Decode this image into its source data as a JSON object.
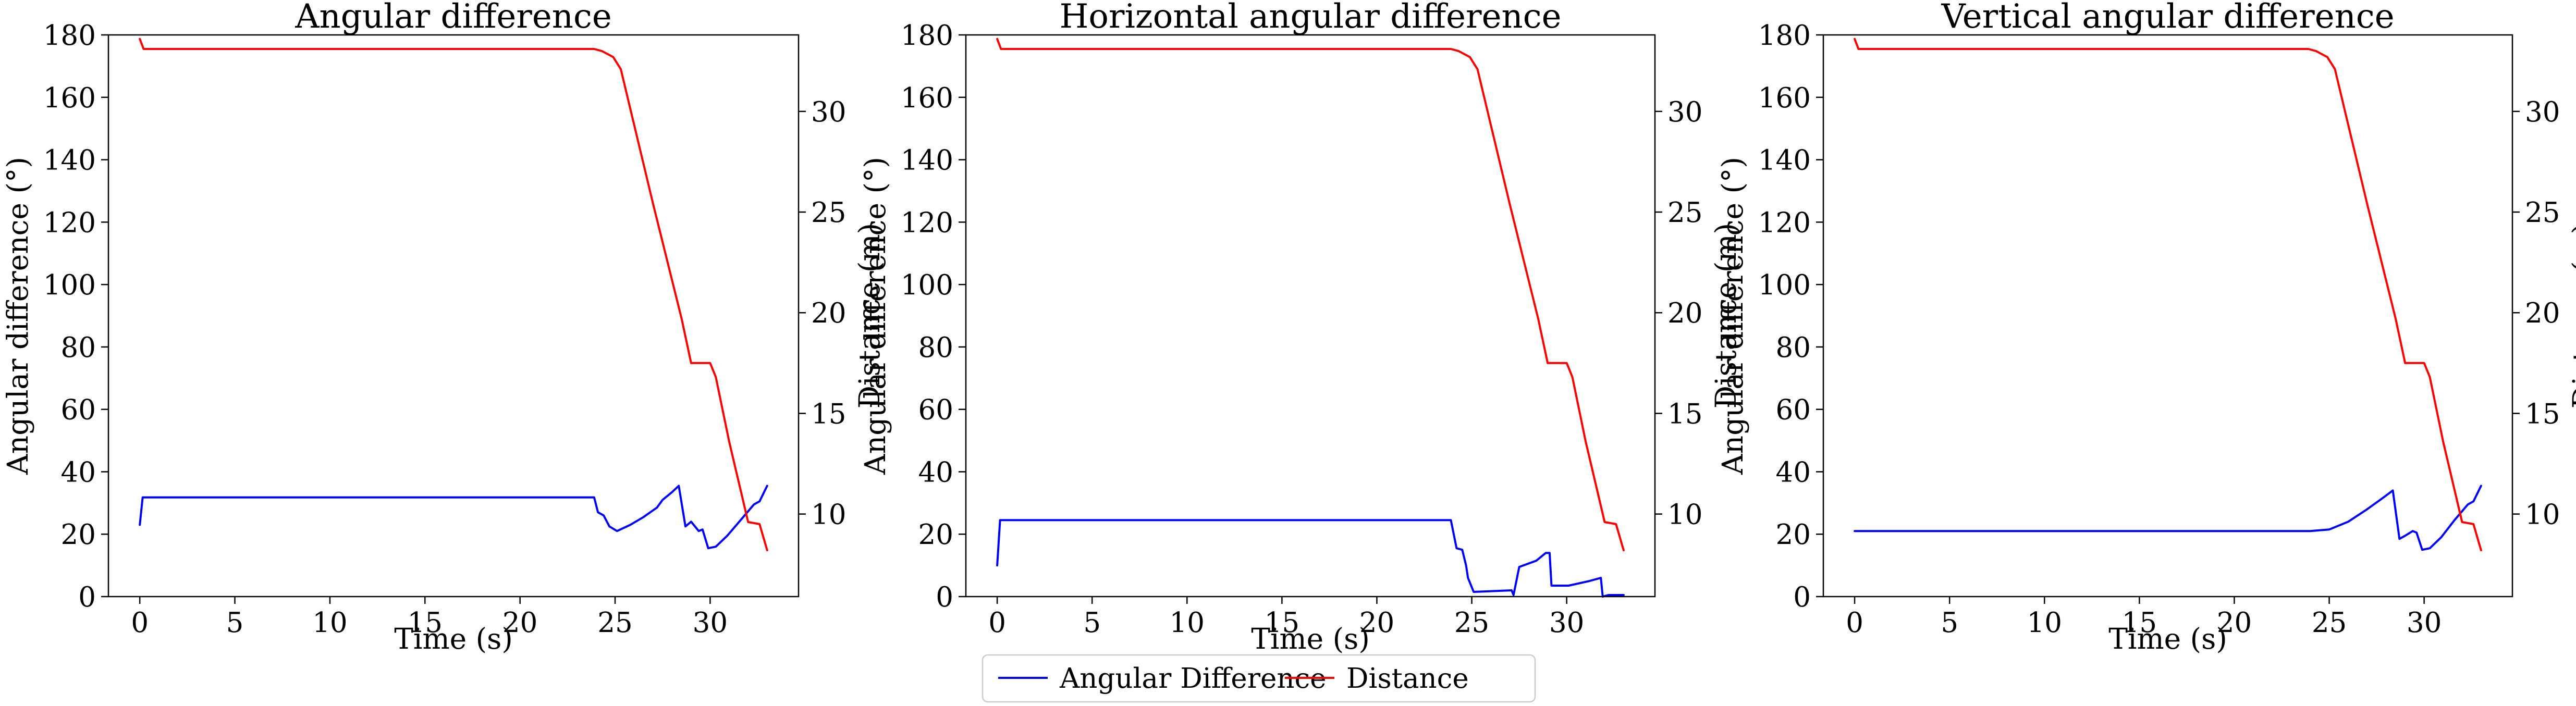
{
  "legend": {
    "position": "bottom-center",
    "entries": [
      {
        "label": "Angular Difference",
        "color": "#0000ff"
      },
      {
        "label": "Distance",
        "color": "#ff0000"
      }
    ]
  },
  "chart_data": [
    {
      "type": "line",
      "title": "Angular difference",
      "xlabel": "Time (s)",
      "ylabel": "Angular difference (°)",
      "y2label": "Distance (m)",
      "xlim": [
        -1.65,
        34.65
      ],
      "ylim": [
        0,
        180
      ],
      "y2lim": [
        5.9,
        33.8
      ],
      "xticks": [
        0,
        5,
        10,
        15,
        20,
        25,
        30
      ],
      "yticks": [
        0,
        20,
        40,
        60,
        80,
        100,
        120,
        140,
        160,
        180
      ],
      "y2ticks": [
        10,
        15,
        20,
        25,
        30
      ],
      "grid": false,
      "series": [
        {
          "name": "Angular Difference",
          "axis": "left",
          "color": "#0000ff",
          "x": [
            0,
            0.15,
            23.9,
            24.1,
            24.4,
            24.7,
            25.1,
            25.8,
            26.5,
            27.2,
            27.5,
            28.0,
            28.35,
            28.7,
            29.0,
            29.4,
            29.6,
            29.9,
            30.3,
            30.9,
            31.6,
            32.3,
            32.6,
            33.0
          ],
          "y": [
            23,
            31.8,
            31.8,
            27,
            26,
            22.5,
            21,
            23,
            25.5,
            28.5,
            31,
            33.5,
            35.5,
            22.5,
            24,
            21,
            21.5,
            15.5,
            16,
            19.5,
            24.5,
            29.5,
            30.5,
            35.5
          ]
        },
        {
          "name": "Distance",
          "axis": "right",
          "color": "#ff0000",
          "x": [
            0,
            0.2,
            23.9,
            24.3,
            24.9,
            25.3,
            27.0,
            28.5,
            29.0,
            29.5,
            30.0,
            30.3,
            31.0,
            32.0,
            32.6,
            33.0
          ],
          "y": [
            33.6,
            33.1,
            33.1,
            33.0,
            32.7,
            32.1,
            25.4,
            19.7,
            17.5,
            17.5,
            17.5,
            16.8,
            13.6,
            9.6,
            9.5,
            8.2
          ]
        }
      ]
    },
    {
      "type": "line",
      "title": "Horizontal angular difference",
      "xlabel": "Time (s)",
      "ylabel": "Angular difference (°)",
      "y2label": "Distance (m)",
      "xlim": [
        -1.65,
        34.65
      ],
      "ylim": [
        0,
        180
      ],
      "y2lim": [
        5.9,
        33.8
      ],
      "xticks": [
        0,
        5,
        10,
        15,
        20,
        25,
        30
      ],
      "yticks": [
        0,
        20,
        40,
        60,
        80,
        100,
        120,
        140,
        160,
        180
      ],
      "y2ticks": [
        10,
        15,
        20,
        25,
        30
      ],
      "grid": false,
      "series": [
        {
          "name": "Angular Difference",
          "axis": "left",
          "color": "#0000ff",
          "x": [
            0,
            0.15,
            23.9,
            24.2,
            24.5,
            24.7,
            24.8,
            25.1,
            27.1,
            27.2,
            27.5,
            28.4,
            28.9,
            29.1,
            29.2,
            30.1,
            31.2,
            31.8,
            31.9,
            32.2,
            33.0
          ],
          "y": [
            10,
            24.5,
            24.5,
            15.5,
            15,
            10,
            6,
            1.5,
            2,
            0.5,
            9.5,
            11.5,
            14,
            14,
            3.5,
            3.5,
            5,
            6,
            0,
            0.5,
            0.5
          ]
        },
        {
          "name": "Distance",
          "axis": "right",
          "color": "#ff0000",
          "x": [
            0,
            0.2,
            23.9,
            24.3,
            24.9,
            25.3,
            27.0,
            28.5,
            29.0,
            29.5,
            30.0,
            30.3,
            31.0,
            32.0,
            32.6,
            33.0
          ],
          "y": [
            33.6,
            33.1,
            33.1,
            33.0,
            32.7,
            32.1,
            25.4,
            19.7,
            17.5,
            17.5,
            17.5,
            16.8,
            13.6,
            9.6,
            9.5,
            8.2
          ]
        }
      ]
    },
    {
      "type": "line",
      "title": "Vertical angular difference",
      "xlabel": "Time (s)",
      "ylabel": "Angular difference (°)",
      "y2label": "Distance (m)",
      "xlim": [
        -1.65,
        34.65
      ],
      "ylim": [
        0,
        180
      ],
      "y2lim": [
        5.9,
        33.8
      ],
      "xticks": [
        0,
        5,
        10,
        15,
        20,
        25,
        30
      ],
      "yticks": [
        0,
        20,
        40,
        60,
        80,
        100,
        120,
        140,
        160,
        180
      ],
      "y2ticks": [
        10,
        15,
        20,
        25,
        30
      ],
      "grid": false,
      "series": [
        {
          "name": "Angular Difference",
          "axis": "left",
          "color": "#0000ff",
          "x": [
            0,
            24.0,
            25.0,
            26.0,
            27.0,
            27.8,
            28.35,
            28.7,
            29.0,
            29.4,
            29.6,
            29.9,
            30.3,
            30.9,
            31.6,
            32.3,
            32.6,
            33.0
          ],
          "y": [
            21,
            21,
            21.5,
            24,
            28,
            31.5,
            34,
            18.5,
            19.5,
            21,
            20.5,
            15,
            15.5,
            19,
            24.5,
            29.5,
            30.5,
            35.5
          ]
        },
        {
          "name": "Distance",
          "axis": "right",
          "color": "#ff0000",
          "x": [
            0,
            0.2,
            23.9,
            24.3,
            24.9,
            25.3,
            27.0,
            28.5,
            29.0,
            29.5,
            30.0,
            30.3,
            31.0,
            32.0,
            32.6,
            33.0
          ],
          "y": [
            33.6,
            33.1,
            33.1,
            33.0,
            32.7,
            32.1,
            25.4,
            19.7,
            17.5,
            17.5,
            17.5,
            16.8,
            13.6,
            9.6,
            9.5,
            8.2
          ]
        }
      ]
    }
  ]
}
